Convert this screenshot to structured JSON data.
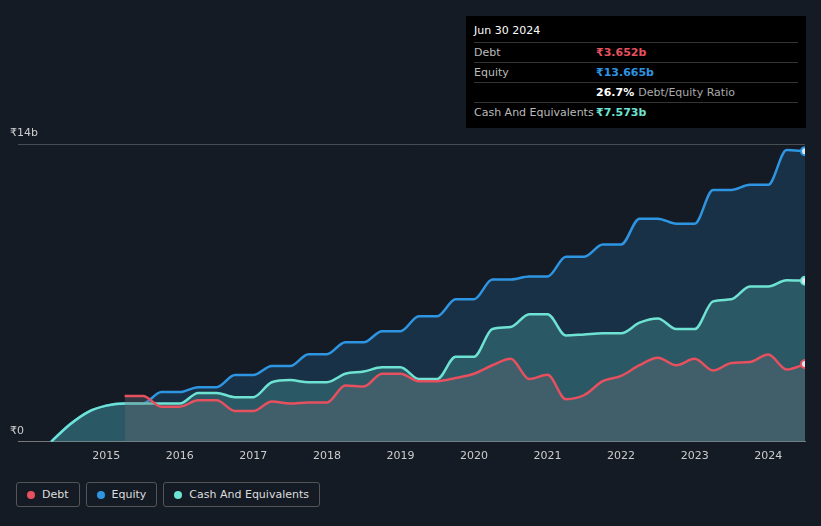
{
  "chart_data": {
    "type": "area",
    "x": [
      2014.25,
      2014.5,
      2014.75,
      2015,
      2015.25,
      2015.5,
      2015.75,
      2016,
      2016.25,
      2016.5,
      2016.75,
      2017,
      2017.25,
      2017.5,
      2017.75,
      2018,
      2018.25,
      2018.5,
      2018.75,
      2019,
      2019.25,
      2019.5,
      2019.75,
      2020,
      2020.25,
      2020.5,
      2020.75,
      2021,
      2021.25,
      2021.5,
      2021.75,
      2022,
      2022.25,
      2022.5,
      2022.75,
      2023,
      2023.25,
      2023.5,
      2023.75,
      2024,
      2024.25,
      2024.5
    ],
    "series": [
      {
        "name": "Debt",
        "color": "#e6505f",
        "values": [
          null,
          null,
          null,
          null,
          2.15,
          2.15,
          1.65,
          1.65,
          1.95,
          1.95,
          1.45,
          1.45,
          1.9,
          1.8,
          1.85,
          1.85,
          2.65,
          2.6,
          3.2,
          3.2,
          2.85,
          2.85,
          3.0,
          3.2,
          3.6,
          3.9,
          2.95,
          3.15,
          2.0,
          2.2,
          2.85,
          3.1,
          3.6,
          3.95,
          3.6,
          3.9,
          3.35,
          3.7,
          3.75,
          4.1,
          3.4,
          3.652
        ]
      },
      {
        "name": "Equity",
        "color": "#2e95e3",
        "values": [
          0,
          0.8,
          1.4,
          1.7,
          1.8,
          1.8,
          2.34,
          2.34,
          2.57,
          2.57,
          3.14,
          3.14,
          3.56,
          3.56,
          4.12,
          4.12,
          4.68,
          4.68,
          5.2,
          5.2,
          5.9,
          5.9,
          6.7,
          6.7,
          7.63,
          7.63,
          7.77,
          7.77,
          8.7,
          8.7,
          9.27,
          9.27,
          10.49,
          10.49,
          10.25,
          10.25,
          11.84,
          11.84,
          12.08,
          12.08,
          13.72,
          13.665
        ]
      },
      {
        "name": "Cash And Equivalents",
        "color": "#6fe3d3",
        "values": [
          0,
          0.8,
          1.4,
          1.7,
          1.8,
          1.8,
          1.8,
          1.8,
          2.3,
          2.3,
          2.1,
          2.1,
          2.8,
          2.9,
          2.8,
          2.8,
          3.2,
          3.3,
          3.5,
          3.5,
          2.95,
          2.95,
          4.0,
          4.0,
          5.3,
          5.4,
          6.0,
          6.0,
          5.0,
          5.05,
          5.1,
          5.1,
          5.6,
          5.8,
          5.3,
          5.3,
          6.6,
          6.7,
          7.3,
          7.3,
          7.6,
          7.573
        ]
      }
    ],
    "xlim": [
      2013.8,
      2024.5
    ],
    "xticks": [
      2015,
      2016,
      2017,
      2018,
      2019,
      2020,
      2021,
      2022,
      2023,
      2024
    ],
    "ylim": [
      0,
      14
    ],
    "yticks": [
      {
        "value": 0,
        "label": "₹0"
      },
      {
        "value": 14,
        "label": "₹14b"
      }
    ],
    "grid": true,
    "legend": "bottom-left",
    "annotations": {
      "title": "Jun 30 2024",
      "rows": [
        {
          "label": "Debt",
          "value": "₹3.652b",
          "color": "#e6505f"
        },
        {
          "label": "Equity",
          "value": "₹13.665b",
          "color": "#2e95e3"
        },
        {
          "value": "26.7%",
          "note": "Debt/Equity Ratio",
          "color": "#ffffff"
        },
        {
          "label": "Cash And Equivalents",
          "value": "₹7.573b",
          "color": "#6fe3d3"
        }
      ]
    }
  }
}
